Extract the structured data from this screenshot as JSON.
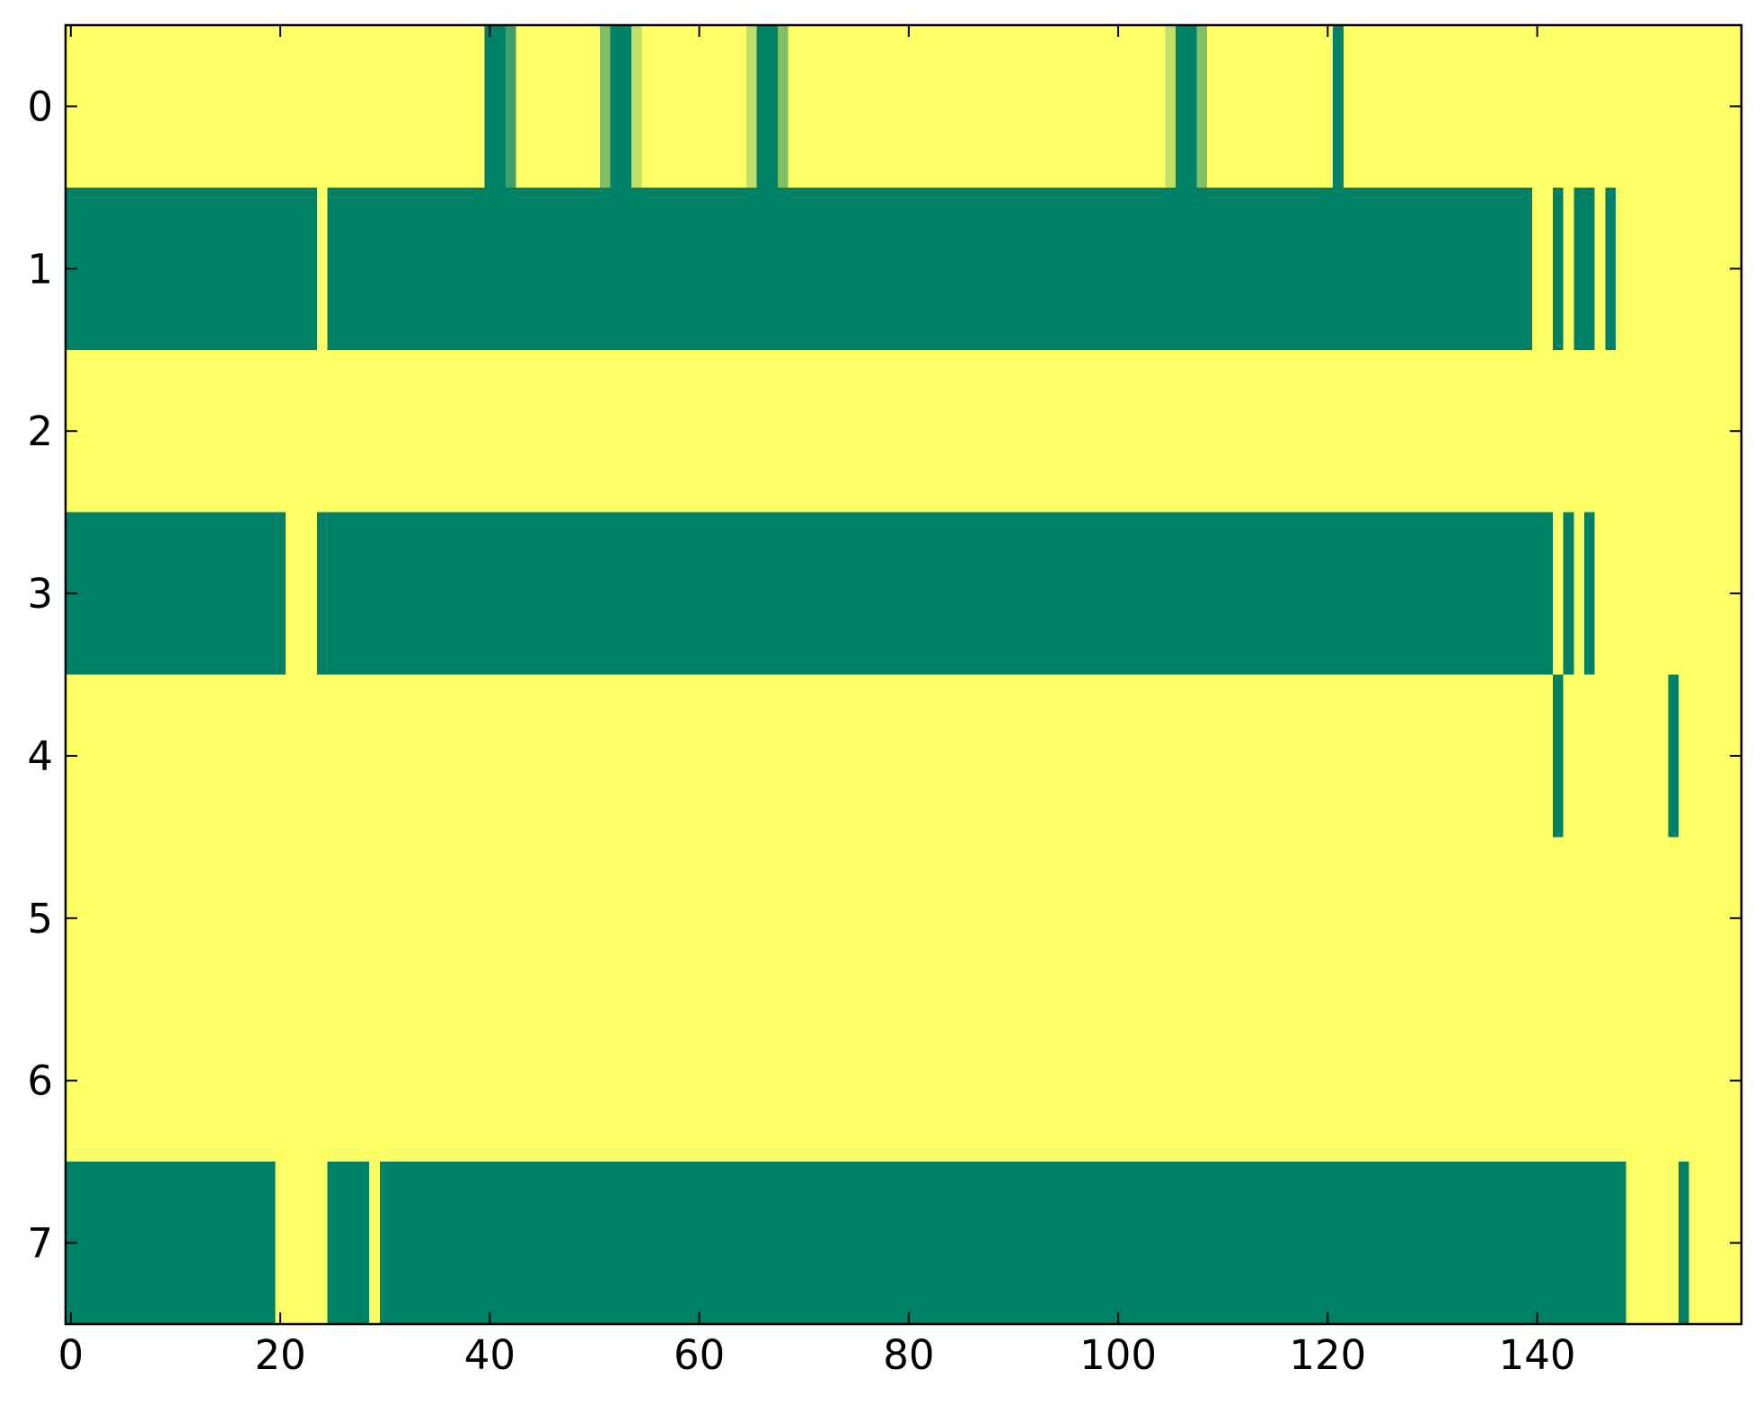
{
  "chart_data": {
    "type": "heatmap",
    "colormap": "summer",
    "zlim": [
      0,
      1
    ],
    "xlim": [
      -0.5,
      159.5
    ],
    "ylim": [
      7.5,
      -0.5
    ],
    "xticks": [
      0,
      20,
      40,
      60,
      80,
      100,
      120,
      140
    ],
    "yticks": [
      0,
      1,
      2,
      3,
      4,
      5,
      6,
      7
    ],
    "values": [
      [
        1,
        1,
        1,
        1,
        1,
        1,
        1,
        1,
        1,
        1,
        1,
        1,
        1,
        1,
        1,
        1,
        1,
        1,
        1,
        1,
        1,
        1,
        1,
        1,
        1,
        1,
        1,
        1,
        1,
        1,
        1,
        1,
        1,
        1,
        1,
        1,
        1,
        1,
        1,
        1,
        0,
        0,
        0.25,
        1,
        1,
        1,
        1,
        1,
        1,
        1,
        1,
        0.5,
        0,
        0,
        0.75,
        1,
        1,
        1,
        1,
        1,
        1,
        1,
        1,
        1,
        1,
        0.75,
        0,
        0,
        0.5,
        1,
        1,
        1,
        1,
        1,
        1,
        1,
        1,
        1,
        1,
        1,
        1,
        1,
        1,
        1,
        1,
        1,
        1,
        1,
        1,
        1,
        1,
        1,
        1,
        1,
        1,
        1,
        1,
        1,
        1,
        1,
        1,
        1,
        1,
        1,
        1,
        0.75,
        0,
        0,
        0.5,
        1,
        1,
        1,
        1,
        1,
        1,
        1,
        1,
        1,
        1,
        1,
        1,
        0,
        1,
        1,
        1,
        1,
        1,
        1,
        1,
        1,
        1,
        1,
        1,
        1,
        1,
        1,
        1,
        1,
        1,
        1,
        1,
        1,
        1,
        1,
        1,
        1,
        1,
        1,
        1,
        1,
        1,
        1,
        1,
        1,
        1,
        1,
        1,
        1,
        1,
        1
      ],
      [
        0,
        0,
        0,
        0,
        0,
        0,
        0,
        0,
        0,
        0,
        0,
        0,
        0,
        0,
        0,
        0,
        0,
        0,
        0,
        0,
        0,
        0,
        0,
        0,
        1,
        0,
        0,
        0,
        0,
        0,
        0,
        0,
        0,
        0,
        0,
        0,
        0,
        0,
        0,
        0,
        0,
        0,
        0,
        0,
        0,
        0,
        0,
        0,
        0,
        0,
        0,
        0,
        0,
        0,
        0,
        0,
        0,
        0,
        0,
        0,
        0,
        0,
        0,
        0,
        0,
        0,
        0,
        0,
        0,
        0,
        0,
        0,
        0,
        0,
        0,
        0,
        0,
        0,
        0,
        0,
        0,
        0,
        0,
        0,
        0,
        0,
        0,
        0,
        0,
        0,
        0,
        0,
        0,
        0,
        0,
        0,
        0,
        0,
        0,
        0,
        0,
        0,
        0,
        0,
        0,
        0,
        0,
        0,
        0,
        0,
        0,
        0,
        0,
        0,
        0,
        0,
        0,
        0,
        0,
        0,
        0,
        0,
        0,
        0,
        0,
        0,
        0,
        0,
        0,
        0,
        0,
        0,
        0,
        0,
        0,
        0,
        0,
        0,
        0,
        0,
        1,
        1,
        0,
        1,
        0,
        0,
        1,
        0,
        1,
        1,
        1,
        1,
        1,
        1,
        1,
        1,
        1,
        1,
        1,
        1
      ],
      [
        1,
        1,
        1,
        1,
        1,
        1,
        1,
        1,
        1,
        1,
        1,
        1,
        1,
        1,
        1,
        1,
        1,
        1,
        1,
        1,
        1,
        1,
        1,
        1,
        1,
        1,
        1,
        1,
        1,
        1,
        1,
        1,
        1,
        1,
        1,
        1,
        1,
        1,
        1,
        1,
        1,
        1,
        1,
        1,
        1,
        1,
        1,
        1,
        1,
        1,
        1,
        1,
        1,
        1,
        1,
        1,
        1,
        1,
        1,
        1,
        1,
        1,
        1,
        1,
        1,
        1,
        1,
        1,
        1,
        1,
        1,
        1,
        1,
        1,
        1,
        1,
        1,
        1,
        1,
        1,
        1,
        1,
        1,
        1,
        1,
        1,
        1,
        1,
        1,
        1,
        1,
        1,
        1,
        1,
        1,
        1,
        1,
        1,
        1,
        1,
        1,
        1,
        1,
        1,
        1,
        1,
        1,
        1,
        1,
        1,
        1,
        1,
        1,
        1,
        1,
        1,
        1,
        1,
        1,
        1,
        1,
        1,
        1,
        1,
        1,
        1,
        1,
        1,
        1,
        1,
        1,
        1,
        1,
        1,
        1,
        1,
        1,
        1,
        1,
        1,
        1,
        1,
        1,
        1,
        1,
        1,
        1,
        1,
        1,
        1,
        1,
        1,
        1,
        1,
        1,
        1,
        1,
        1,
        1,
        1
      ],
      [
        0,
        0,
        0,
        0,
        0,
        0,
        0,
        0,
        0,
        0,
        0,
        0,
        0,
        0,
        0,
        0,
        0,
        0,
        0,
        0,
        0,
        1,
        1,
        1,
        0,
        0,
        0,
        0,
        0,
        0,
        0,
        0,
        0,
        0,
        0,
        0,
        0,
        0,
        0,
        0,
        0,
        0,
        0,
        0,
        0,
        0,
        0,
        0,
        0,
        0,
        0,
        0,
        0,
        0,
        0,
        0,
        0,
        0,
        0,
        0,
        0,
        0,
        0,
        0,
        0,
        0,
        0,
        0,
        0,
        0,
        0,
        0,
        0,
        0,
        0,
        0,
        0,
        0,
        0,
        0,
        0,
        0,
        0,
        0,
        0,
        0,
        0,
        0,
        0,
        0,
        0,
        0,
        0,
        0,
        0,
        0,
        0,
        0,
        0,
        0,
        0,
        0,
        0,
        0,
        0,
        0,
        0,
        0,
        0,
        0,
        0,
        0,
        0,
        0,
        0,
        0,
        0,
        0,
        0,
        0,
        0,
        0,
        0,
        0,
        0,
        0,
        0,
        0,
        0,
        0,
        0,
        0,
        0,
        0,
        0,
        0,
        0,
        0,
        0,
        0,
        0,
        0,
        1,
        0,
        1,
        0,
        1,
        1,
        1,
        1,
        1,
        1,
        1,
        1,
        1,
        1,
        1,
        1,
        1,
        1
      ],
      [
        1,
        1,
        1,
        1,
        1,
        1,
        1,
        1,
        1,
        1,
        1,
        1,
        1,
        1,
        1,
        1,
        1,
        1,
        1,
        1,
        1,
        1,
        1,
        1,
        1,
        1,
        1,
        1,
        1,
        1,
        1,
        1,
        1,
        1,
        1,
        1,
        1,
        1,
        1,
        1,
        1,
        1,
        1,
        1,
        1,
        1,
        1,
        1,
        1,
        1,
        1,
        1,
        1,
        1,
        1,
        1,
        1,
        1,
        1,
        1,
        1,
        1,
        1,
        1,
        1,
        1,
        1,
        1,
        1,
        1,
        1,
        1,
        1,
        1,
        1,
        1,
        1,
        1,
        1,
        1,
        1,
        1,
        1,
        1,
        1,
        1,
        1,
        1,
        1,
        1,
        1,
        1,
        1,
        1,
        1,
        1,
        1,
        1,
        1,
        1,
        1,
        1,
        1,
        1,
        1,
        1,
        1,
        1,
        1,
        1,
        1,
        1,
        1,
        1,
        1,
        1,
        1,
        1,
        1,
        1,
        1,
        1,
        1,
        1,
        1,
        1,
        1,
        1,
        1,
        1,
        1,
        1,
        1,
        1,
        1,
        1,
        1,
        1,
        1,
        1,
        1,
        1,
        0,
        1,
        1,
        1,
        1,
        1,
        1,
        1,
        1,
        1,
        1,
        0,
        1,
        1,
        1,
        1,
        1,
        1
      ],
      [
        1,
        1,
        1,
        1,
        1,
        1,
        1,
        1,
        1,
        1,
        1,
        1,
        1,
        1,
        1,
        1,
        1,
        1,
        1,
        1,
        1,
        1,
        1,
        1,
        1,
        1,
        1,
        1,
        1,
        1,
        1,
        1,
        1,
        1,
        1,
        1,
        1,
        1,
        1,
        1,
        1,
        1,
        1,
        1,
        1,
        1,
        1,
        1,
        1,
        1,
        1,
        1,
        1,
        1,
        1,
        1,
        1,
        1,
        1,
        1,
        1,
        1,
        1,
        1,
        1,
        1,
        1,
        1,
        1,
        1,
        1,
        1,
        1,
        1,
        1,
        1,
        1,
        1,
        1,
        1,
        1,
        1,
        1,
        1,
        1,
        1,
        1,
        1,
        1,
        1,
        1,
        1,
        1,
        1,
        1,
        1,
        1,
        1,
        1,
        1,
        1,
        1,
        1,
        1,
        1,
        1,
        1,
        1,
        1,
        1,
        1,
        1,
        1,
        1,
        1,
        1,
        1,
        1,
        1,
        1,
        1,
        1,
        1,
        1,
        1,
        1,
        1,
        1,
        1,
        1,
        1,
        1,
        1,
        1,
        1,
        1,
        1,
        1,
        1,
        1,
        1,
        1,
        1,
        1,
        1,
        1,
        1,
        1,
        1,
        1,
        1,
        1,
        1,
        1,
        1,
        1,
        1,
        1,
        1,
        1
      ],
      [
        1,
        1,
        1,
        1,
        1,
        1,
        1,
        1,
        1,
        1,
        1,
        1,
        1,
        1,
        1,
        1,
        1,
        1,
        1,
        1,
        1,
        1,
        1,
        1,
        1,
        1,
        1,
        1,
        1,
        1,
        1,
        1,
        1,
        1,
        1,
        1,
        1,
        1,
        1,
        1,
        1,
        1,
        1,
        1,
        1,
        1,
        1,
        1,
        1,
        1,
        1,
        1,
        1,
        1,
        1,
        1,
        1,
        1,
        1,
        1,
        1,
        1,
        1,
        1,
        1,
        1,
        1,
        1,
        1,
        1,
        1,
        1,
        1,
        1,
        1,
        1,
        1,
        1,
        1,
        1,
        1,
        1,
        1,
        1,
        1,
        1,
        1,
        1,
        1,
        1,
        1,
        1,
        1,
        1,
        1,
        1,
        1,
        1,
        1,
        1,
        1,
        1,
        1,
        1,
        1,
        1,
        1,
        1,
        1,
        1,
        1,
        1,
        1,
        1,
        1,
        1,
        1,
        1,
        1,
        1,
        1,
        1,
        1,
        1,
        1,
        1,
        1,
        1,
        1,
        1,
        1,
        1,
        1,
        1,
        1,
        1,
        1,
        1,
        1,
        1,
        1,
        1,
        1,
        1,
        1,
        1,
        1,
        1,
        1,
        1,
        1,
        1,
        1,
        1,
        1,
        1,
        1,
        1,
        1,
        1
      ],
      [
        0,
        0,
        0,
        0,
        0,
        0,
        0,
        0,
        0,
        0,
        0,
        0,
        0,
        0,
        0,
        0,
        0,
        0,
        0,
        0,
        1,
        1,
        1,
        1,
        1,
        0,
        0,
        0,
        0,
        1,
        0,
        0,
        0,
        0,
        0,
        0,
        0,
        0,
        0,
        0,
        0,
        0,
        0,
        0,
        0,
        0,
        0,
        0,
        0,
        0,
        0,
        0,
        0,
        0,
        0,
        0,
        0,
        0,
        0,
        0,
        0,
        0,
        0,
        0,
        0,
        0,
        0,
        0,
        0,
        0,
        0,
        0,
        0,
        0,
        0,
        0,
        0,
        0,
        0,
        0,
        0,
        0,
        0,
        0,
        0,
        0,
        0,
        0,
        0,
        0,
        0,
        0,
        0,
        0,
        0,
        0,
        0,
        0,
        0,
        0,
        0,
        0,
        0,
        0,
        0,
        0,
        0,
        0,
        0,
        0,
        0,
        0,
        0,
        0,
        0,
        0,
        0,
        0,
        0,
        0,
        0,
        0,
        0,
        0,
        0,
        0,
        0,
        0,
        0,
        0,
        0,
        0,
        0,
        0,
        0,
        0,
        0,
        0,
        0,
        0,
        0,
        0,
        0,
        0,
        0,
        0,
        0,
        0,
        0,
        1,
        1,
        1,
        1,
        1,
        0,
        1,
        1,
        1,
        1,
        1
      ]
    ]
  }
}
